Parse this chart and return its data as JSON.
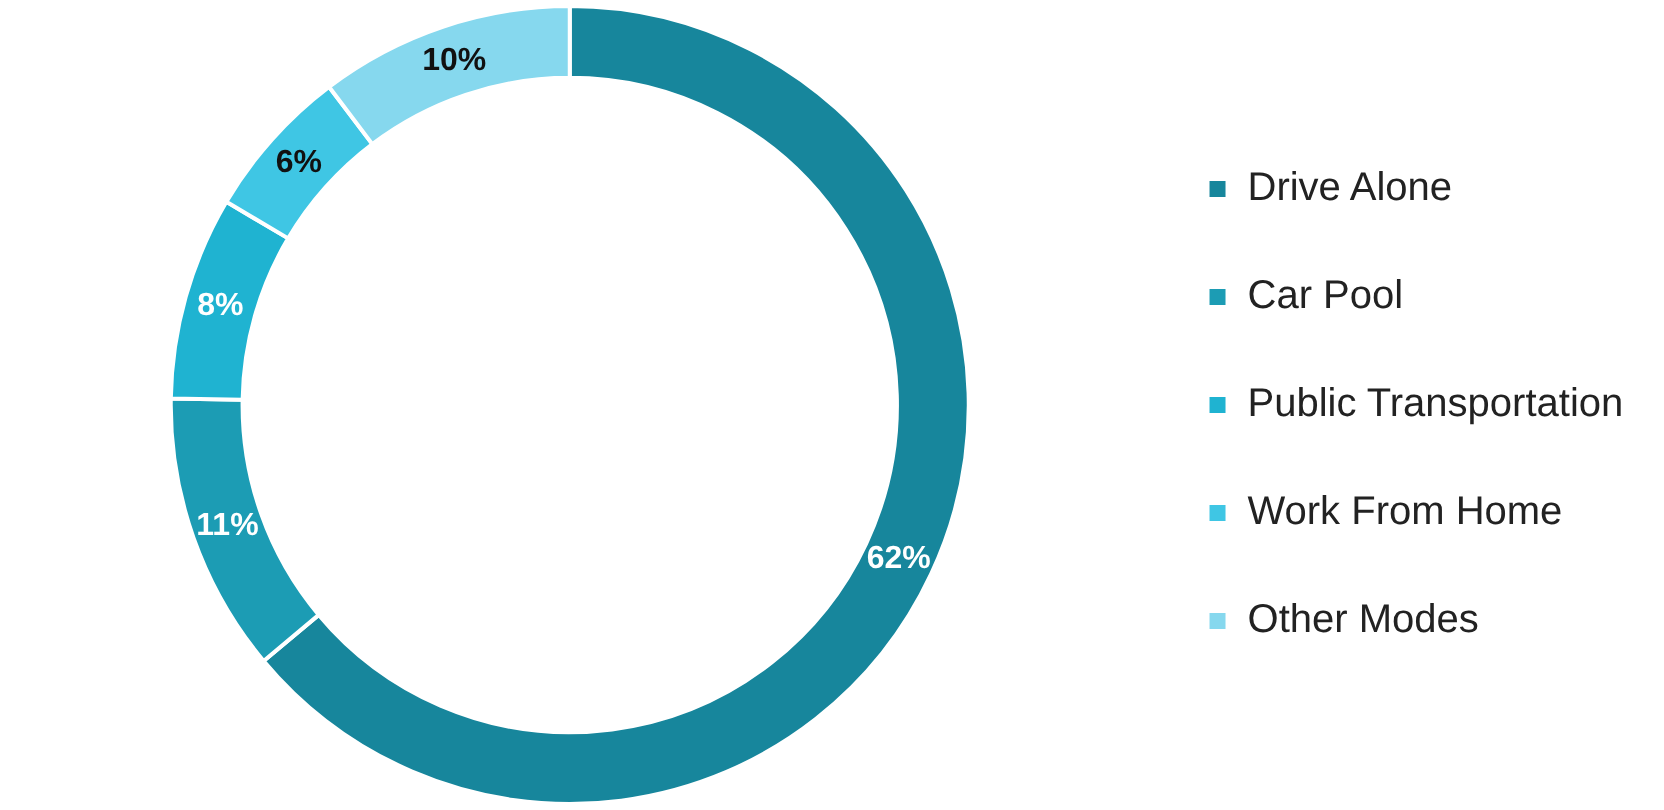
{
  "chart_data": {
    "type": "donut",
    "categories": [
      "Drive Alone",
      "Car Pool",
      "Public Transportation",
      "Work From Home",
      "Other Modes"
    ],
    "values": [
      62,
      11,
      8,
      6,
      10
    ],
    "colors": [
      "#17869c",
      "#1c9cb4",
      "#1fb3d1",
      "#3fc6e4",
      "#86d8ee"
    ],
    "value_labels": [
      "62%",
      "11%",
      "8%",
      "6%",
      "10%"
    ],
    "legend": "right"
  }
}
